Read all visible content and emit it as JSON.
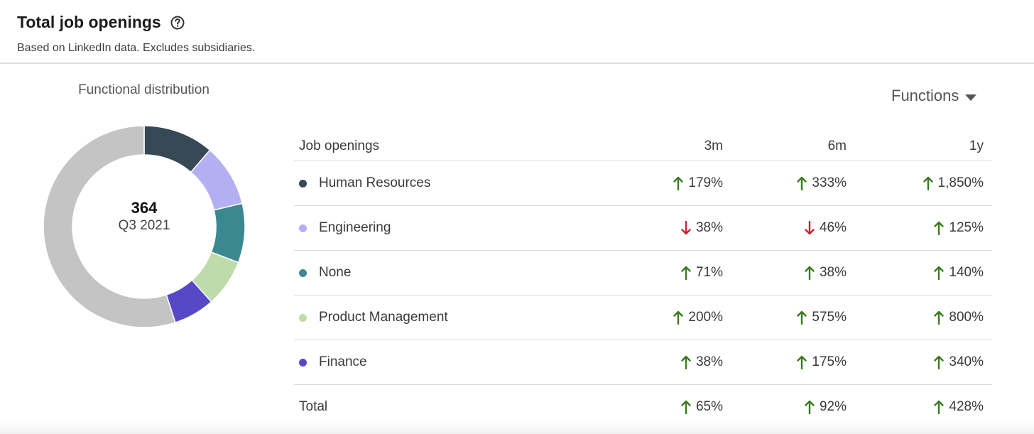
{
  "header": {
    "title": "Total job openings",
    "subtitle": "Based on LinkedIn data. Excludes subsidiaries."
  },
  "icons": {
    "help": "help-circle-icon",
    "dropdown": "caret-down-icon",
    "up": "arrow-up-icon",
    "down": "arrow-down-icon"
  },
  "colors": {
    "up": "#3a7a1f",
    "down": "#c4262e",
    "other": "#c4c4c4"
  },
  "filter": {
    "label": "Functions"
  },
  "chart_data": {
    "type": "pie",
    "variant": "donut",
    "title": "Functional distribution",
    "center": {
      "value": "364",
      "label": "Q3 2021"
    },
    "unit": "share of job openings",
    "slices": [
      {
        "name": "Human Resources",
        "value": 0.113,
        "color": "#374955"
      },
      {
        "name": "Engineering",
        "value": 0.1,
        "color": "#b3b0f2"
      },
      {
        "name": "None",
        "value": 0.095,
        "color": "#3b8890"
      },
      {
        "name": "Product Management",
        "value": 0.076,
        "color": "#bddca9"
      },
      {
        "name": "Finance",
        "value": 0.066,
        "color": "#5748c6"
      },
      {
        "name": "",
        "value": 0.55,
        "color": "#c4c4c4"
      }
    ]
  },
  "table": {
    "columns": [
      "Job openings",
      "3m",
      "6m",
      "1y"
    ],
    "rows": [
      {
        "name": "Human Resources",
        "color": "#374955",
        "values": [
          {
            "dir": "up",
            "text": "179%"
          },
          {
            "dir": "up",
            "text": "333%"
          },
          {
            "dir": "up",
            "text": "1,850%"
          }
        ]
      },
      {
        "name": "Engineering",
        "color": "#b3b0f2",
        "values": [
          {
            "dir": "down",
            "text": "38%"
          },
          {
            "dir": "down",
            "text": "46%"
          },
          {
            "dir": "up",
            "text": "125%"
          }
        ]
      },
      {
        "name": "None",
        "color": "#3b8890",
        "values": [
          {
            "dir": "up",
            "text": "71%"
          },
          {
            "dir": "up",
            "text": "38%"
          },
          {
            "dir": "up",
            "text": "140%"
          }
        ]
      },
      {
        "name": "Product Management",
        "color": "#bddca9",
        "values": [
          {
            "dir": "up",
            "text": "200%"
          },
          {
            "dir": "up",
            "text": "575%"
          },
          {
            "dir": "up",
            "text": "800%"
          }
        ]
      },
      {
        "name": "Finance",
        "color": "#5748c6",
        "values": [
          {
            "dir": "up",
            "text": "38%"
          },
          {
            "dir": "up",
            "text": "175%"
          },
          {
            "dir": "up",
            "text": "340%"
          }
        ]
      }
    ],
    "total": {
      "name": "Total",
      "values": [
        {
          "dir": "up",
          "text": "65%"
        },
        {
          "dir": "up",
          "text": "92%"
        },
        {
          "dir": "up",
          "text": "428%"
        }
      ]
    }
  }
}
